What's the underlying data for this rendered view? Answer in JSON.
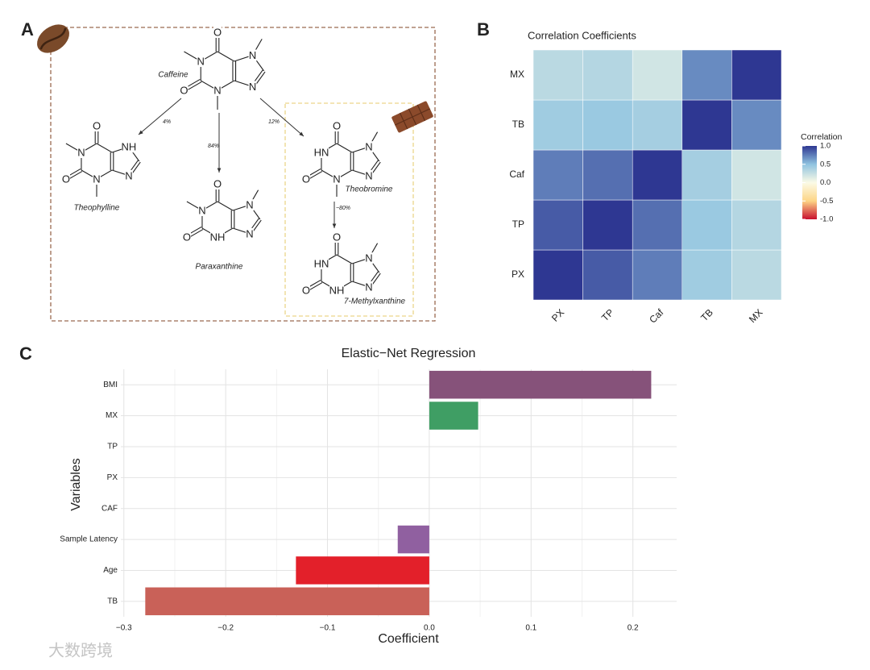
{
  "panels": [
    "A",
    "B",
    "C"
  ],
  "watermark": "大数跨境",
  "diagram": {
    "molecules": [
      {
        "name": "Caffeine",
        "atoms": [
          "O",
          "N",
          "O",
          "N",
          "N",
          "N"
        ]
      },
      {
        "name": "Theophylline",
        "atoms": [
          "O",
          "N",
          "O",
          "N",
          "NH",
          "N"
        ]
      },
      {
        "name": "Paraxanthine",
        "atoms": [
          "O",
          "N",
          "O",
          "NH",
          "N",
          "N"
        ]
      },
      {
        "name": "Theobromine",
        "atoms": [
          "O",
          "HN",
          "O",
          "N",
          "N",
          "N"
        ]
      },
      {
        "name": "7-Methylxanthine",
        "atoms": [
          "O",
          "HN",
          "O",
          "NH",
          "N",
          "N"
        ]
      }
    ],
    "conversions": [
      "4%",
      "84%",
      "12%",
      "~80%"
    ]
  },
  "chart_data": [
    {
      "type": "heatmap",
      "title": "Correlation Coefficients",
      "x_categories": [
        "PX",
        "TP",
        "Caf",
        "TB",
        "MX"
      ],
      "y_categories": [
        "PX",
        "TP",
        "Caf",
        "TB",
        "MX"
      ],
      "values": [
        [
          1,
          0.87,
          0.75,
          0.42,
          0.3
        ],
        [
          0.87,
          1,
          0.8,
          0.45,
          0.33
        ],
        [
          0.75,
          0.8,
          1,
          0.4,
          0.2
        ],
        [
          0.42,
          0.45,
          0.4,
          1,
          0.7
        ],
        [
          0.3,
          0.33,
          0.2,
          0.7,
          1
        ]
      ],
      "legend_title": "Correlation",
      "zlim": [
        -1,
        1
      ],
      "zticks": [
        {
          "value": 1,
          "label": "1.0"
        },
        0.5,
        {
          "value": 0,
          "label": "0.0"
        },
        -0.5,
        {
          "value": -1,
          "label": "-1.0"
        }
      ],
      "colorscale": [
        "#c8102e",
        "#fdd587",
        "#fbfbe6",
        "#8fc3e0",
        "#2e3792"
      ]
    },
    {
      "type": "bar",
      "orientation": "horizontal",
      "title": "Elastic−Net Regression",
      "xlabel": "Coefficient",
      "ylabel": "Variables",
      "categories": [
        "BMI",
        "MX",
        "TP",
        "PX",
        "CAF",
        "Sample Latency",
        "Age",
        "TB"
      ],
      "values": [
        0.218,
        0.048,
        0,
        0,
        0,
        -0.031,
        -0.131,
        -0.279
      ],
      "colors": [
        "#86527a",
        "#3f9e64",
        null,
        null,
        null,
        "#9060a0",
        "#e3202a",
        "#c96158"
      ],
      "xlim": [
        -0.303,
        0.243
      ],
      "xticks": [
        {
          "value": -0.3,
          "label": "−0.3"
        },
        {
          "value": -0.2,
          "label": "−0.2"
        },
        {
          "value": -0.1,
          "label": "−0.1"
        },
        {
          "value": 0,
          "label": "0.0"
        },
        0.1,
        0.2
      ],
      "grid": true
    }
  ]
}
